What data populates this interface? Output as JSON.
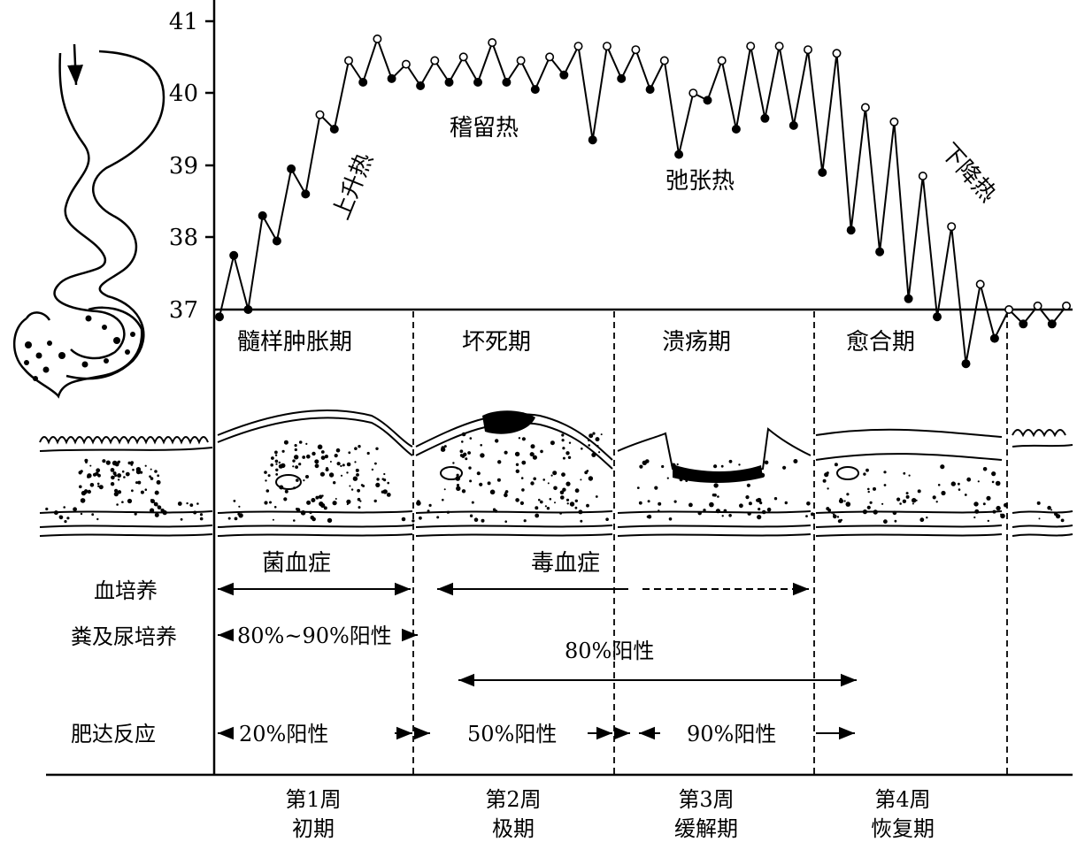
{
  "temperature_chart": {
    "y_ticks": [
      "41",
      "40",
      "39",
      "38",
      "37"
    ],
    "series": [
      36.9,
      37.75,
      37.0,
      38.3,
      37.95,
      38.95,
      38.6,
      39.7,
      39.5,
      40.45,
      40.15,
      40.75,
      40.2,
      40.4,
      40.1,
      40.45,
      40.15,
      40.5,
      40.15,
      40.7,
      40.15,
      40.45,
      40.05,
      40.5,
      40.25,
      40.65,
      39.35,
      40.65,
      40.2,
      40.6,
      40.05,
      40.45,
      39.15,
      40.0,
      39.9,
      40.45,
      39.5,
      40.65,
      39.65,
      40.65,
      39.55,
      40.6,
      38.9,
      40.55,
      38.1,
      39.8,
      37.8,
      39.6,
      37.15,
      38.85,
      36.9,
      38.15,
      36.25,
      37.35,
      36.6,
      37.0,
      36.8,
      37.05,
      36.8,
      37.05
    ],
    "fever_labels": {
      "rising": "上升热",
      "sustained": "稽留热",
      "remittent": "弛张热",
      "falling": "下降热"
    }
  },
  "pathology_stages": [
    "髓样肿胀期",
    "坏死期",
    "溃疡期",
    "愈合期"
  ],
  "bacteremia_label": "菌血症",
  "toxemia_label": "毒血症",
  "rows": {
    "blood_culture": "血培养",
    "stool_urine_culture": "粪及尿培养",
    "stool_week1": "80%~90%阳性",
    "stool_later": "80%阳性",
    "widal": "肥达反应",
    "widal_values": [
      "20%阳性",
      "50%阳性",
      "90%阳性"
    ]
  },
  "weeks": [
    {
      "week": "第1周",
      "phase": "初期"
    },
    {
      "week": "第2周",
      "phase": "极期"
    },
    {
      "week": "第3周",
      "phase": "缓解期"
    },
    {
      "week": "第4周",
      "phase": "恢复期"
    }
  ]
}
